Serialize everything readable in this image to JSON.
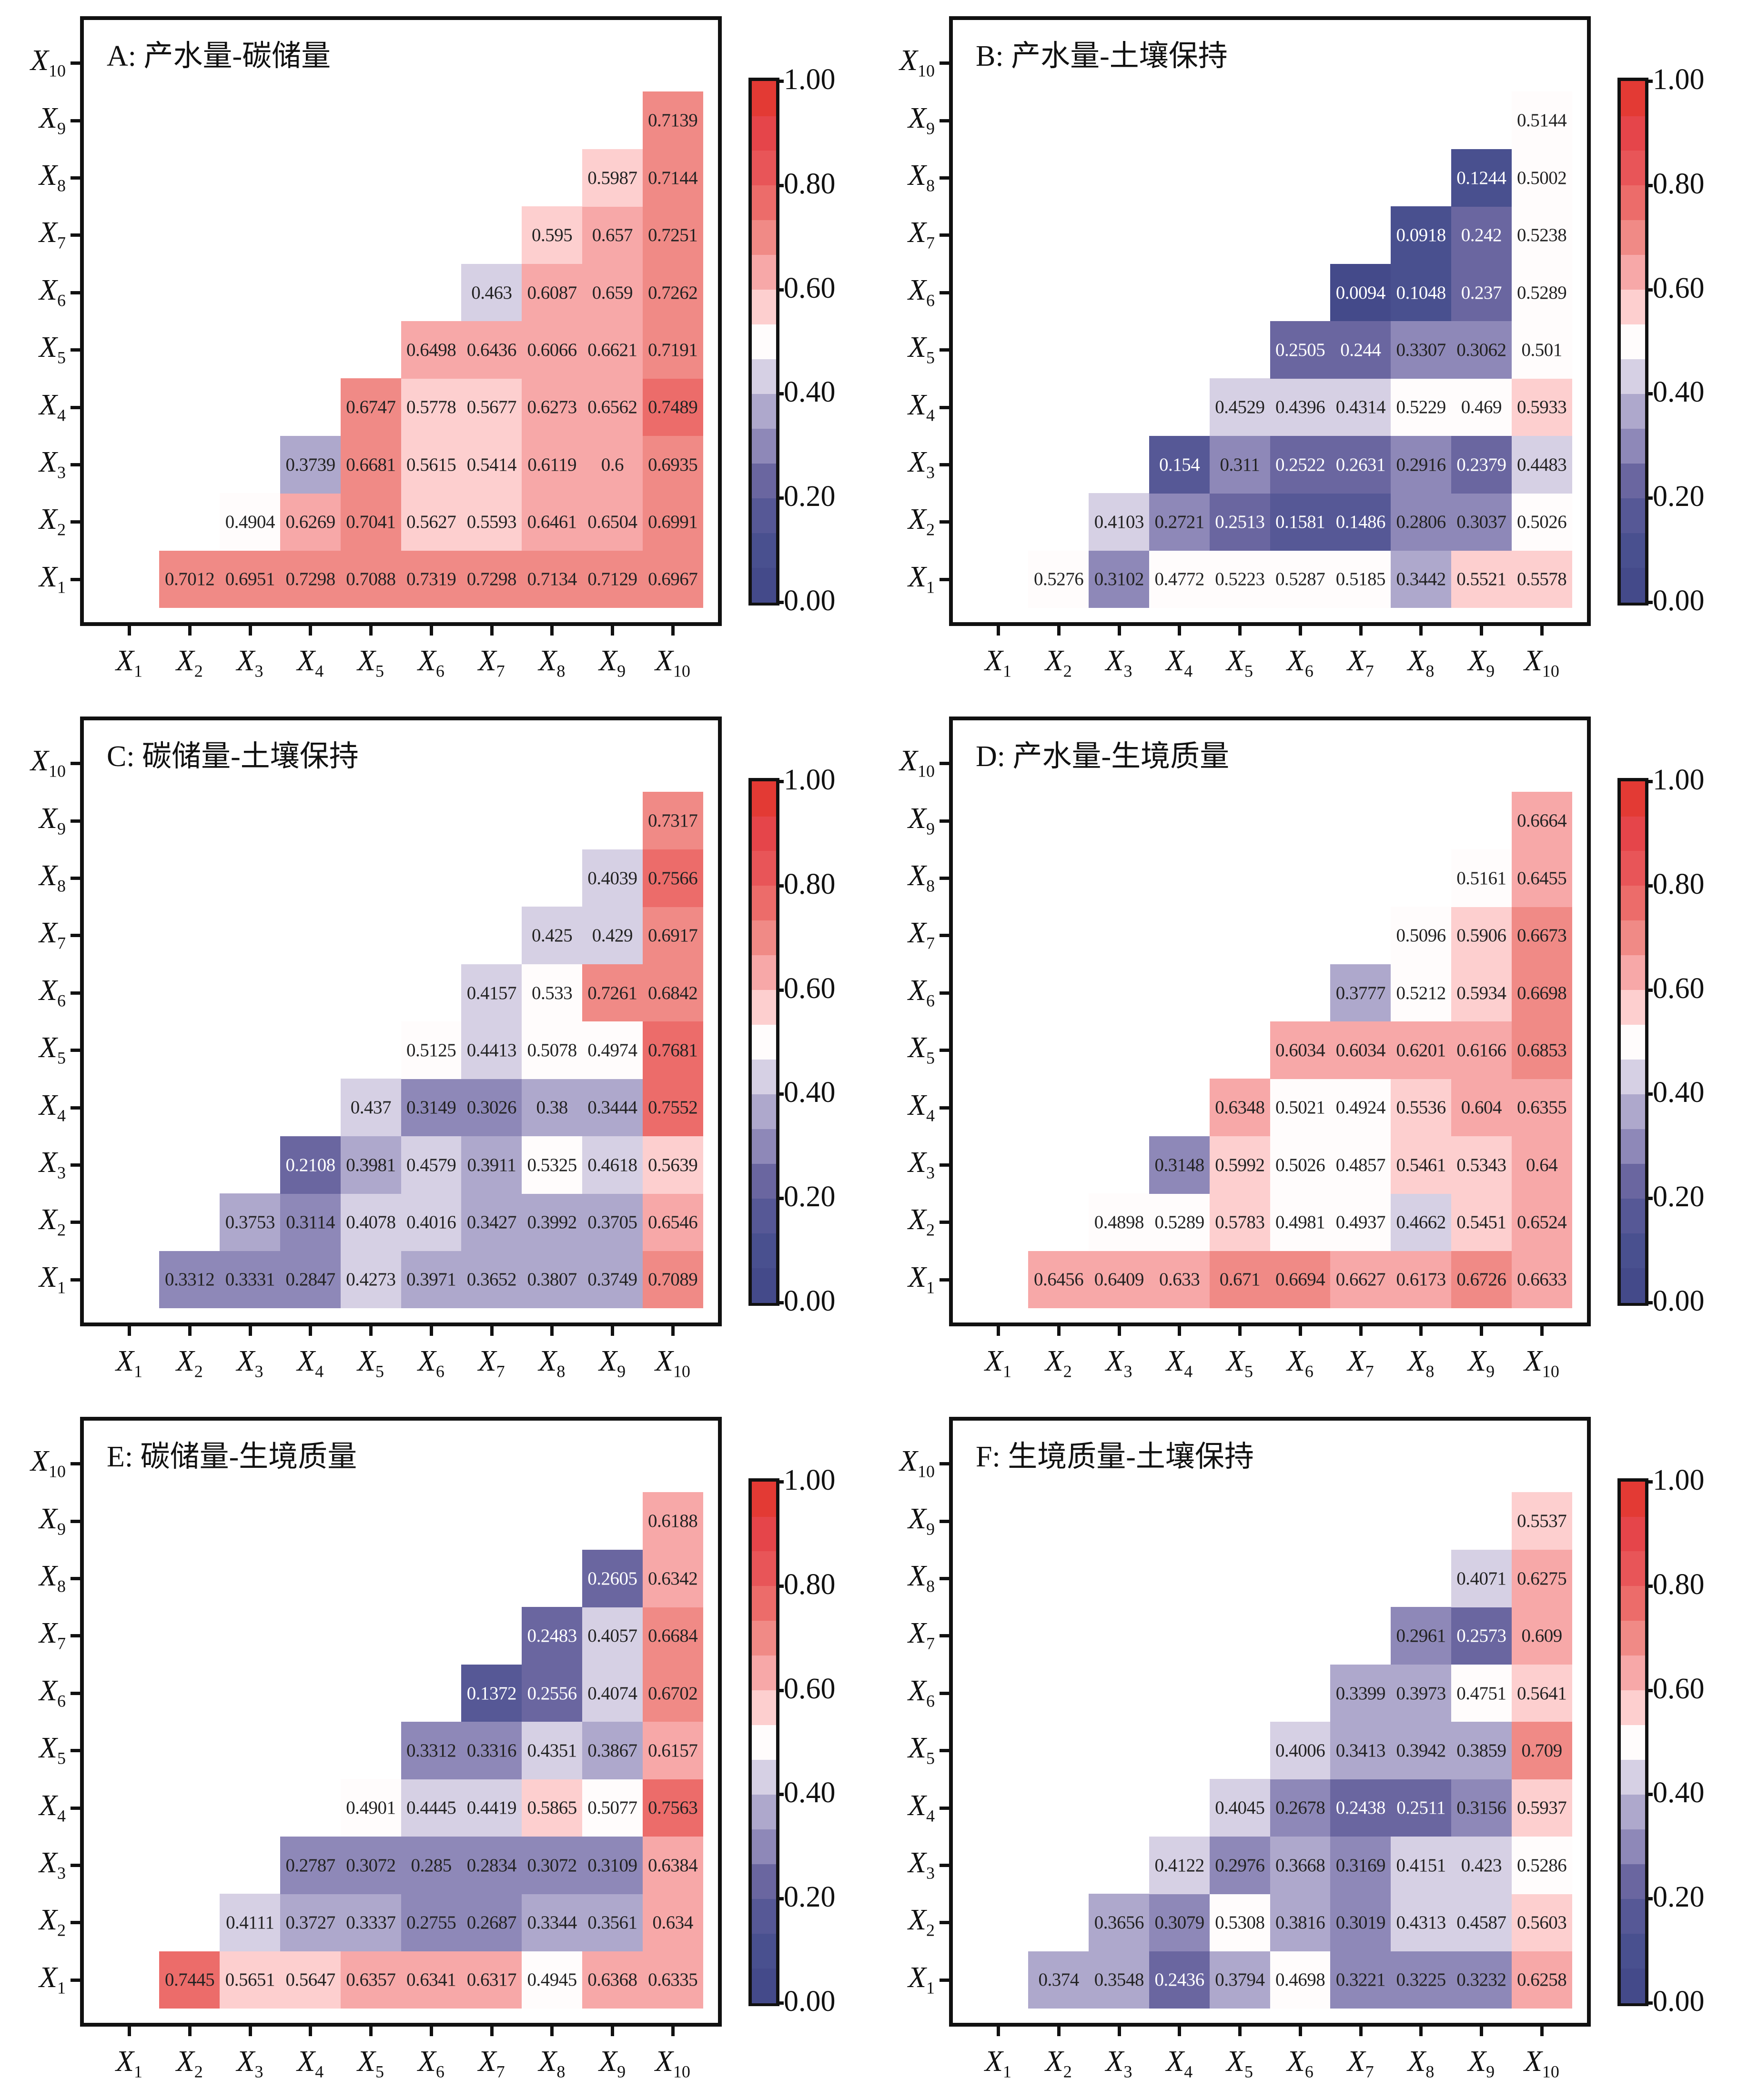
{
  "colorbar": {
    "ticks": [
      "0.00",
      "0.20",
      "0.40",
      "0.60",
      "0.80",
      "1.00"
    ],
    "tick_values": [
      0,
      0.2,
      0.4,
      0.6,
      0.8,
      1.0
    ],
    "range": [
      0,
      1
    ],
    "bands": [
      "#444a8a",
      "#49508f",
      "#565896",
      "#6a66a0",
      "#8e88b8",
      "#aea8cc",
      "#d6d0e4",
      "#fffcfc",
      "#fdcfcf",
      "#f7a8a8",
      "#f08a86",
      "#ec6c6a",
      "#e85558",
      "#e5454a",
      "#e33a34"
    ]
  },
  "chart_data": [
    {
      "type": "heatmap",
      "title": "A: 产水量-碳储量",
      "x_labels": [
        "1",
        "2",
        "3",
        "4",
        "5",
        "6",
        "7",
        "8",
        "9",
        "10"
      ],
      "y_labels": [
        "1",
        "2",
        "3",
        "4",
        "5",
        "6",
        "7",
        "8",
        "9",
        "10"
      ],
      "axis_symbol": "X",
      "vrange": [
        0,
        1
      ],
      "rows": [
        {
          "y": 1,
          "values": [
            null,
            0.7012,
            0.6951,
            0.7298,
            0.7088,
            0.7319,
            0.7298,
            0.7134,
            0.7129,
            0.6967
          ]
        },
        {
          "y": 2,
          "values": [
            null,
            null,
            0.4904,
            0.6269,
            0.7041,
            0.5627,
            0.5593,
            0.6461,
            0.6504,
            0.6991
          ]
        },
        {
          "y": 3,
          "values": [
            null,
            null,
            null,
            0.3739,
            0.6681,
            0.5615,
            0.5414,
            0.6119,
            0.6,
            0.6935
          ]
        },
        {
          "y": 4,
          "values": [
            null,
            null,
            null,
            null,
            0.6747,
            0.5778,
            0.5677,
            0.6273,
            0.6562,
            0.7489
          ]
        },
        {
          "y": 5,
          "values": [
            null,
            null,
            null,
            null,
            null,
            0.6498,
            0.6436,
            0.6066,
            0.6621,
            0.7191
          ]
        },
        {
          "y": 6,
          "values": [
            null,
            null,
            null,
            null,
            null,
            null,
            0.463,
            0.6087,
            0.659,
            0.7262
          ]
        },
        {
          "y": 7,
          "values": [
            null,
            null,
            null,
            null,
            null,
            null,
            null,
            0.595,
            0.657,
            0.7251
          ]
        },
        {
          "y": 8,
          "values": [
            null,
            null,
            null,
            null,
            null,
            null,
            null,
            null,
            0.5987,
            0.7144
          ]
        },
        {
          "y": 9,
          "values": [
            null,
            null,
            null,
            null,
            null,
            null,
            null,
            null,
            null,
            0.7139
          ]
        },
        {
          "y": 10,
          "values": [
            null,
            null,
            null,
            null,
            null,
            null,
            null,
            null,
            null,
            null
          ]
        }
      ],
      "labels": [
        [
          "",
          "0.7012",
          "0.6951",
          "0.7298",
          "0.7088",
          "0.7319",
          "0.7298",
          "0.7134",
          "0.7129",
          "0.6967"
        ],
        [
          "",
          "",
          "0.4904",
          "0.6269",
          "0.7041",
          "0.5627",
          "0.5593",
          "0.6461",
          "0.6504",
          "0.6991"
        ],
        [
          "",
          "",
          "",
          "0.3739",
          "0.6681",
          "0.5615",
          "0.5414",
          "0.6119",
          "0.6",
          "0.6935"
        ],
        [
          "",
          "",
          "",
          "",
          "0.6747",
          "0.5778",
          "0.5677",
          "0.6273",
          "0.6562",
          "0.7489"
        ],
        [
          "",
          "",
          "",
          "",
          "",
          "0.6498",
          "0.6436",
          "0.6066",
          "0.6621",
          "0.7191"
        ],
        [
          "",
          "",
          "",
          "",
          "",
          "",
          "0.463",
          "0.6087",
          "0.659",
          "0.7262"
        ],
        [
          "",
          "",
          "",
          "",
          "",
          "",
          "",
          "0.595",
          "0.657",
          "0.7251"
        ],
        [
          "",
          "",
          "",
          "",
          "",
          "",
          "",
          "",
          "0.5987",
          "0.7144"
        ],
        [
          "",
          "",
          "",
          "",
          "",
          "",
          "",
          "",
          "",
          "0.7139"
        ],
        [
          "",
          "",
          "",
          "",
          "",
          "",
          "",
          "",
          "",
          ""
        ]
      ]
    },
    {
      "type": "heatmap",
      "title": "B: 产水量-土壤保持",
      "x_labels": [
        "1",
        "2",
        "3",
        "4",
        "5",
        "6",
        "7",
        "8",
        "9",
        "10"
      ],
      "y_labels": [
        "1",
        "2",
        "3",
        "4",
        "5",
        "6",
        "7",
        "8",
        "9",
        "10"
      ],
      "axis_symbol": "X",
      "vrange": [
        0,
        1
      ],
      "labels": [
        [
          "",
          "0.5276",
          "0.3102",
          "0.4772",
          "0.5223",
          "0.5287",
          "0.5185",
          "0.3442",
          "0.5521",
          "0.5578"
        ],
        [
          "",
          "",
          "0.4103",
          "0.2721",
          "0.2513",
          "0.1581",
          "0.1486",
          "0.2806",
          "0.3037",
          "0.5026"
        ],
        [
          "",
          "",
          "",
          "0.154",
          "0.311",
          "0.2522",
          "0.2631",
          "0.2916",
          "0.2379",
          "0.4483"
        ],
        [
          "",
          "",
          "",
          "",
          "0.4529",
          "0.4396",
          "0.4314",
          "0.5229",
          "0.469",
          "0.5933"
        ],
        [
          "",
          "",
          "",
          "",
          "",
          "0.2505",
          "0.244",
          "0.3307",
          "0.3062",
          "0.501"
        ],
        [
          "",
          "",
          "",
          "",
          "",
          "",
          "0.0094",
          "0.1048",
          "0.237",
          "0.5289"
        ],
        [
          "",
          "",
          "",
          "",
          "",
          "",
          "",
          "0.0918",
          "0.242",
          "0.5238"
        ],
        [
          "",
          "",
          "",
          "",
          "",
          "",
          "",
          "",
          "0.1244",
          "0.5002"
        ],
        [
          "",
          "",
          "",
          "",
          "",
          "",
          "",
          "",
          "",
          "0.5144"
        ],
        [
          "",
          "",
          "",
          "",
          "",
          "",
          "",
          "",
          "",
          ""
        ]
      ]
    },
    {
      "type": "heatmap",
      "title": "C: 碳储量-土壤保持",
      "x_labels": [
        "1",
        "2",
        "3",
        "4",
        "5",
        "6",
        "7",
        "8",
        "9",
        "10"
      ],
      "y_labels": [
        "1",
        "2",
        "3",
        "4",
        "5",
        "6",
        "7",
        "8",
        "9",
        "10"
      ],
      "axis_symbol": "X",
      "vrange": [
        0,
        1
      ],
      "labels": [
        [
          "",
          "0.3312",
          "0.3331",
          "0.2847",
          "0.4273",
          "0.3971",
          "0.3652",
          "0.3807",
          "0.3749",
          "0.7089"
        ],
        [
          "",
          "",
          "0.3753",
          "0.3114",
          "0.4078",
          "0.4016",
          "0.3427",
          "0.3992",
          "0.3705",
          "0.6546"
        ],
        [
          "",
          "",
          "",
          "0.2108",
          "0.3981",
          "0.4579",
          "0.3911",
          "0.5325",
          "0.4618",
          "0.5639"
        ],
        [
          "",
          "",
          "",
          "",
          "0.437",
          "0.3149",
          "0.3026",
          "0.38",
          "0.3444",
          "0.7552"
        ],
        [
          "",
          "",
          "",
          "",
          "",
          "0.5125",
          "0.4413",
          "0.5078",
          "0.4974",
          "0.7681"
        ],
        [
          "",
          "",
          "",
          "",
          "",
          "",
          "0.4157",
          "0.533",
          "0.7261",
          "0.6842"
        ],
        [
          "",
          "",
          "",
          "",
          "",
          "",
          "",
          "0.425",
          "0.429",
          "0.6917"
        ],
        [
          "",
          "",
          "",
          "",
          "",
          "",
          "",
          "",
          "0.4039",
          "0.7566"
        ],
        [
          "",
          "",
          "",
          "",
          "",
          "",
          "",
          "",
          "",
          "0.7317"
        ],
        [
          "",
          "",
          "",
          "",
          "",
          "",
          "",
          "",
          "",
          ""
        ]
      ]
    },
    {
      "type": "heatmap",
      "title": "D: 产水量-生境质量",
      "x_labels": [
        "1",
        "2",
        "3",
        "4",
        "5",
        "6",
        "7",
        "8",
        "9",
        "10"
      ],
      "y_labels": [
        "1",
        "2",
        "3",
        "4",
        "5",
        "6",
        "7",
        "8",
        "9",
        "10"
      ],
      "axis_symbol": "X",
      "vrange": [
        0,
        1
      ],
      "labels": [
        [
          "",
          "0.6456",
          "0.6409",
          "0.633",
          "0.671",
          "0.6694",
          "0.6627",
          "0.6173",
          "0.6726",
          "0.6633"
        ],
        [
          "",
          "",
          "0.4898",
          "0.5289",
          "0.5783",
          "0.4981",
          "0.4937",
          "0.4662",
          "0.5451",
          "0.6524"
        ],
        [
          "",
          "",
          "",
          "0.3148",
          "0.5992",
          "0.5026",
          "0.4857",
          "0.5461",
          "0.5343",
          "0.64"
        ],
        [
          "",
          "",
          "",
          "",
          "0.6348",
          "0.5021",
          "0.4924",
          "0.5536",
          "0.604",
          "0.6355"
        ],
        [
          "",
          "",
          "",
          "",
          "",
          "0.6034",
          "0.6034",
          "0.6201",
          "0.6166",
          "0.6853"
        ],
        [
          "",
          "",
          "",
          "",
          "",
          "",
          "0.3777",
          "0.5212",
          "0.5934",
          "0.6698"
        ],
        [
          "",
          "",
          "",
          "",
          "",
          "",
          "",
          "0.5096",
          "0.5906",
          "0.6673"
        ],
        [
          "",
          "",
          "",
          "",
          "",
          "",
          "",
          "",
          "0.5161",
          "0.6455"
        ],
        [
          "",
          "",
          "",
          "",
          "",
          "",
          "",
          "",
          "",
          "0.6664"
        ],
        [
          "",
          "",
          "",
          "",
          "",
          "",
          "",
          "",
          "",
          ""
        ]
      ]
    },
    {
      "type": "heatmap",
      "title": "E: 碳储量-生境质量",
      "x_labels": [
        "1",
        "2",
        "3",
        "4",
        "5",
        "6",
        "7",
        "8",
        "9",
        "10"
      ],
      "y_labels": [
        "1",
        "2",
        "3",
        "4",
        "5",
        "6",
        "7",
        "8",
        "9",
        "10"
      ],
      "axis_symbol": "X",
      "vrange": [
        0,
        1
      ],
      "labels": [
        [
          "",
          "0.7445",
          "0.5651",
          "0.5647",
          "0.6357",
          "0.6341",
          "0.6317",
          "0.4945",
          "0.6368",
          "0.6335"
        ],
        [
          "",
          "",
          "0.4111",
          "0.3727",
          "0.3337",
          "0.2755",
          "0.2687",
          "0.3344",
          "0.3561",
          "0.634"
        ],
        [
          "",
          "",
          "",
          "0.2787",
          "0.3072",
          "0.285",
          "0.2834",
          "0.3072",
          "0.3109",
          "0.6384"
        ],
        [
          "",
          "",
          "",
          "",
          "0.4901",
          "0.4445",
          "0.4419",
          "0.5865",
          "0.5077",
          "0.7563"
        ],
        [
          "",
          "",
          "",
          "",
          "",
          "0.3312",
          "0.3316",
          "0.4351",
          "0.3867",
          "0.6157"
        ],
        [
          "",
          "",
          "",
          "",
          "",
          "",
          "0.1372",
          "0.2556",
          "0.4074",
          "0.6702"
        ],
        [
          "",
          "",
          "",
          "",
          "",
          "",
          "",
          "0.2483",
          "0.4057",
          "0.6684"
        ],
        [
          "",
          "",
          "",
          "",
          "",
          "",
          "",
          "",
          "0.2605",
          "0.6342"
        ],
        [
          "",
          "",
          "",
          "",
          "",
          "",
          "",
          "",
          "",
          "0.6188"
        ],
        [
          "",
          "",
          "",
          "",
          "",
          "",
          "",
          "",
          "",
          ""
        ]
      ]
    },
    {
      "type": "heatmap",
      "title": "F: 生境质量-土壤保持",
      "x_labels": [
        "1",
        "2",
        "3",
        "4",
        "5",
        "6",
        "7",
        "8",
        "9",
        "10"
      ],
      "y_labels": [
        "1",
        "2",
        "3",
        "4",
        "5",
        "6",
        "7",
        "8",
        "9",
        "10"
      ],
      "axis_symbol": "X",
      "vrange": [
        0,
        1
      ],
      "labels": [
        [
          "",
          "0.374",
          "0.3548",
          "0.2436",
          "0.3794",
          "0.4698",
          "0.3221",
          "0.3225",
          "0.3232",
          "0.6258"
        ],
        [
          "",
          "",
          "0.3656",
          "0.3079",
          "0.5308",
          "0.3816",
          "0.3019",
          "0.4313",
          "0.4587",
          "0.5603"
        ],
        [
          "",
          "",
          "",
          "0.4122",
          "0.2976",
          "0.3668",
          "0.3169",
          "0.4151",
          "0.423",
          "0.5286"
        ],
        [
          "",
          "",
          "",
          "",
          "0.4045",
          "0.2678",
          "0.2438",
          "0.2511",
          "0.3156",
          "0.5937"
        ],
        [
          "",
          "",
          "",
          "",
          "",
          "0.4006",
          "0.3413",
          "0.3942",
          "0.3859",
          "0.709"
        ],
        [
          "",
          "",
          "",
          "",
          "",
          "",
          "0.3399",
          "0.3973",
          "0.4751",
          "0.5641"
        ],
        [
          "",
          "",
          "",
          "",
          "",
          "",
          "",
          "0.2961",
          "0.2573",
          "0.609"
        ],
        [
          "",
          "",
          "",
          "",
          "",
          "",
          "",
          "",
          "0.4071",
          "0.6275"
        ],
        [
          "",
          "",
          "",
          "",
          "",
          "",
          "",
          "",
          "",
          "0.5537"
        ],
        [
          "",
          "",
          "",
          "",
          "",
          "",
          "",
          "",
          "",
          ""
        ]
      ]
    }
  ]
}
